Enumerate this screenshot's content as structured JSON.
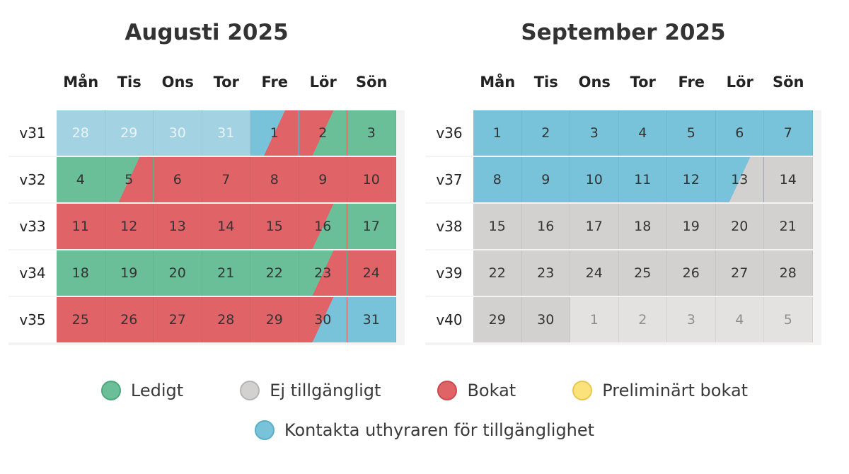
{
  "colors": {
    "free": "#6abf98",
    "booked": "#e06467",
    "contact": "#78c3da",
    "unavailable": "#d2d1d0",
    "preliminary": "#fbe27a"
  },
  "weekdays": [
    "Mån",
    "Tis",
    "Ons",
    "Tor",
    "Fre",
    "Lör",
    "Sön"
  ],
  "months": [
    {
      "title": "Augusti 2025",
      "weeks": [
        {
          "label": "v31",
          "days": [
            {
              "d": "28",
              "s": "pastcontact"
            },
            {
              "d": "29",
              "s": "pastcontact"
            },
            {
              "d": "30",
              "s": "pastcontact"
            },
            {
              "d": "31",
              "s": "pastcontact"
            },
            {
              "d": "1",
              "s": "contact",
              "s2": "booked"
            },
            {
              "d": "2",
              "s": "booked",
              "s2": "free"
            },
            {
              "d": "3",
              "s": "free"
            }
          ]
        },
        {
          "label": "v32",
          "days": [
            {
              "d": "4",
              "s": "free"
            },
            {
              "d": "5",
              "s": "free",
              "s2": "booked"
            },
            {
              "d": "6",
              "s": "booked"
            },
            {
              "d": "7",
              "s": "booked"
            },
            {
              "d": "8",
              "s": "booked"
            },
            {
              "d": "9",
              "s": "booked"
            },
            {
              "d": "10",
              "s": "booked"
            }
          ]
        },
        {
          "label": "v33",
          "days": [
            {
              "d": "11",
              "s": "booked"
            },
            {
              "d": "12",
              "s": "booked"
            },
            {
              "d": "13",
              "s": "booked"
            },
            {
              "d": "14",
              "s": "booked"
            },
            {
              "d": "15",
              "s": "booked"
            },
            {
              "d": "16",
              "s": "booked",
              "s2": "free"
            },
            {
              "d": "17",
              "s": "free"
            }
          ]
        },
        {
          "label": "v34",
          "days": [
            {
              "d": "18",
              "s": "free"
            },
            {
              "d": "19",
              "s": "free"
            },
            {
              "d": "20",
              "s": "free"
            },
            {
              "d": "21",
              "s": "free"
            },
            {
              "d": "22",
              "s": "free"
            },
            {
              "d": "23",
              "s": "free",
              "s2": "booked"
            },
            {
              "d": "24",
              "s": "booked"
            }
          ]
        },
        {
          "label": "v35",
          "days": [
            {
              "d": "25",
              "s": "booked"
            },
            {
              "d": "26",
              "s": "booked"
            },
            {
              "d": "27",
              "s": "booked"
            },
            {
              "d": "28",
              "s": "booked"
            },
            {
              "d": "29",
              "s": "booked"
            },
            {
              "d": "30",
              "s": "booked",
              "s2": "contact"
            },
            {
              "d": "31",
              "s": "contact"
            }
          ]
        }
      ]
    },
    {
      "title": "September 2025",
      "weeks": [
        {
          "label": "v36",
          "days": [
            {
              "d": "1",
              "s": "contact"
            },
            {
              "d": "2",
              "s": "contact"
            },
            {
              "d": "3",
              "s": "contact"
            },
            {
              "d": "4",
              "s": "contact"
            },
            {
              "d": "5",
              "s": "contact"
            },
            {
              "d": "6",
              "s": "contact"
            },
            {
              "d": "7",
              "s": "contact"
            }
          ]
        },
        {
          "label": "v37",
          "days": [
            {
              "d": "8",
              "s": "contact"
            },
            {
              "d": "9",
              "s": "contact"
            },
            {
              "d": "10",
              "s": "contact"
            },
            {
              "d": "11",
              "s": "contact"
            },
            {
              "d": "12",
              "s": "contact"
            },
            {
              "d": "13",
              "s": "contact",
              "s2": "unavail"
            },
            {
              "d": "14",
              "s": "unavail"
            }
          ]
        },
        {
          "label": "v38",
          "days": [
            {
              "d": "15",
              "s": "unavail"
            },
            {
              "d": "16",
              "s": "unavail"
            },
            {
              "d": "17",
              "s": "unavail"
            },
            {
              "d": "18",
              "s": "unavail"
            },
            {
              "d": "19",
              "s": "unavail"
            },
            {
              "d": "20",
              "s": "unavail"
            },
            {
              "d": "21",
              "s": "unavail"
            }
          ]
        },
        {
          "label": "v39",
          "days": [
            {
              "d": "22",
              "s": "unavail"
            },
            {
              "d": "23",
              "s": "unavail"
            },
            {
              "d": "24",
              "s": "unavail"
            },
            {
              "d": "25",
              "s": "unavail"
            },
            {
              "d": "26",
              "s": "unavail"
            },
            {
              "d": "27",
              "s": "unavail"
            },
            {
              "d": "28",
              "s": "unavail"
            }
          ]
        },
        {
          "label": "v40",
          "days": [
            {
              "d": "29",
              "s": "unavail"
            },
            {
              "d": "30",
              "s": "unavail"
            },
            {
              "d": "1",
              "s": "outside"
            },
            {
              "d": "2",
              "s": "outside"
            },
            {
              "d": "3",
              "s": "outside"
            },
            {
              "d": "4",
              "s": "outside"
            },
            {
              "d": "5",
              "s": "outside"
            }
          ]
        }
      ]
    }
  ],
  "legend": {
    "free": "Ledigt",
    "unavailable": "Ej tillgängligt",
    "booked": "Bokat",
    "preliminary": "Preliminärt bokat",
    "contact": "Kontakta uthyraren för tillgänglighet"
  }
}
